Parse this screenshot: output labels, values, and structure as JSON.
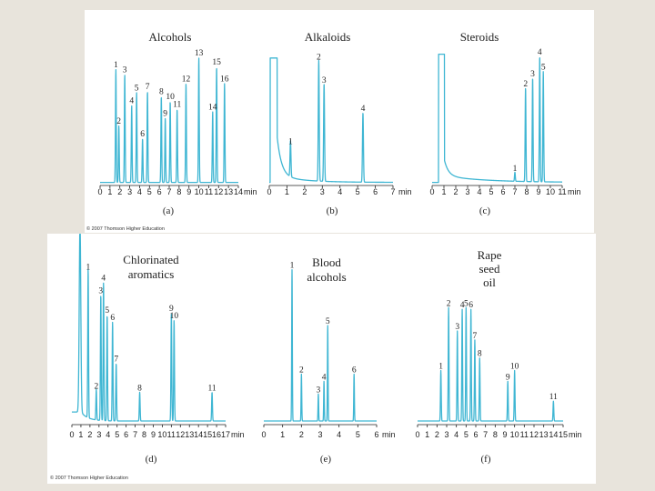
{
  "copyright": "© 2007 Thomson Higher Education",
  "colors": {
    "trace": "#3fb6d3",
    "background": "#e8e4dc",
    "panel": "#ffffff",
    "text": "#222222"
  },
  "chart_data": [
    {
      "id": "a",
      "type": "line",
      "title": "Alcohols",
      "caption": "(a)",
      "xlabel": "min",
      "xlim": [
        0,
        14
      ],
      "xticks": [
        0,
        1,
        2,
        3,
        4,
        5,
        6,
        7,
        8,
        9,
        10,
        11,
        12,
        13,
        14
      ],
      "peaks": [
        {
          "label": "1",
          "t": 1.6,
          "h": 0.88
        },
        {
          "label": "2",
          "t": 1.9,
          "h": 0.44
        },
        {
          "label": "3",
          "t": 2.5,
          "h": 0.84
        },
        {
          "label": "4",
          "t": 3.2,
          "h": 0.6
        },
        {
          "label": "5",
          "t": 3.7,
          "h": 0.7
        },
        {
          "label": "6",
          "t": 4.3,
          "h": 0.34
        },
        {
          "label": "7",
          "t": 4.8,
          "h": 0.71
        },
        {
          "label": "8",
          "t": 6.2,
          "h": 0.67
        },
        {
          "label": "9",
          "t": 6.6,
          "h": 0.5
        },
        {
          "label": "10",
          "t": 7.1,
          "h": 0.63
        },
        {
          "label": "11",
          "t": 7.8,
          "h": 0.57
        },
        {
          "label": "12",
          "t": 8.7,
          "h": 0.77
        },
        {
          "label": "13",
          "t": 10.0,
          "h": 0.97
        },
        {
          "label": "14",
          "t": 11.4,
          "h": 0.55
        },
        {
          "label": "15",
          "t": 11.8,
          "h": 0.9
        },
        {
          "label": "16",
          "t": 12.6,
          "h": 0.77
        }
      ]
    },
    {
      "id": "b",
      "type": "line",
      "title": "Alkaloids",
      "caption": "(b)",
      "xlabel": "min",
      "xlim": [
        0,
        7
      ],
      "xticks": [
        0,
        1,
        2,
        3,
        4,
        5,
        6,
        7
      ],
      "peaks": [
        {
          "label": "1",
          "t": 1.2,
          "h": 0.28
        },
        {
          "label": "2",
          "t": 2.8,
          "h": 0.94
        },
        {
          "label": "3",
          "t": 3.1,
          "h": 0.76
        },
        {
          "label": "4",
          "t": 5.3,
          "h": 0.54
        }
      ]
    },
    {
      "id": "c",
      "type": "line",
      "title": "Steroids",
      "caption": "(c)",
      "xlabel": "min",
      "xlim": [
        0,
        11
      ],
      "xticks": [
        0,
        1,
        2,
        3,
        4,
        5,
        6,
        7,
        8,
        9,
        10,
        11
      ],
      "peaks": [
        {
          "label": "1",
          "t": 7.0,
          "h": 0.07
        },
        {
          "label": "2",
          "t": 7.9,
          "h": 0.73
        },
        {
          "label": "3",
          "t": 8.5,
          "h": 0.81
        },
        {
          "label": "4",
          "t": 9.1,
          "h": 0.98
        },
        {
          "label": "5",
          "t": 9.4,
          "h": 0.86
        }
      ]
    },
    {
      "id": "d",
      "type": "line",
      "title": [
        "Chlorinated",
        "aromatics"
      ],
      "caption": "(d)",
      "xlabel": "min",
      "xlim": [
        0,
        17
      ],
      "xticks": [
        0,
        1,
        2,
        3,
        4,
        5,
        6,
        7,
        8,
        9,
        10,
        11,
        12,
        13,
        14,
        15,
        16,
        17
      ],
      "peaks": [
        {
          "label": "1",
          "t": 1.8,
          "h": 0.83
        },
        {
          "label": "2",
          "t": 2.7,
          "h": 0.17
        },
        {
          "label": "3",
          "t": 3.2,
          "h": 0.7
        },
        {
          "label": "4",
          "t": 3.5,
          "h": 0.77
        },
        {
          "label": "5",
          "t": 3.9,
          "h": 0.59
        },
        {
          "label": "6",
          "t": 4.5,
          "h": 0.55
        },
        {
          "label": "7",
          "t": 4.9,
          "h": 0.32
        },
        {
          "label": "8",
          "t": 7.5,
          "h": 0.16
        },
        {
          "label": "9",
          "t": 11.0,
          "h": 0.6
        },
        {
          "label": "10",
          "t": 11.3,
          "h": 0.56
        },
        {
          "label": "11",
          "t": 15.5,
          "h": 0.16
        }
      ]
    },
    {
      "id": "e",
      "type": "line",
      "title": [
        "Blood",
        "alcohols"
      ],
      "caption": "(e)",
      "xlabel": "min",
      "xlim": [
        0,
        6
      ],
      "xticks": [
        0,
        1,
        2,
        3,
        4,
        5,
        6
      ],
      "peaks": [
        {
          "label": "1",
          "t": 1.5,
          "h": 0.84
        },
        {
          "label": "2",
          "t": 2.0,
          "h": 0.26
        },
        {
          "label": "3",
          "t": 2.9,
          "h": 0.15
        },
        {
          "label": "4",
          "t": 3.2,
          "h": 0.22
        },
        {
          "label": "5",
          "t": 3.4,
          "h": 0.53
        },
        {
          "label": "6",
          "t": 4.8,
          "h": 0.26
        }
      ]
    },
    {
      "id": "f",
      "type": "line",
      "title": [
        "Rape",
        "seed",
        "oil"
      ],
      "caption": "(f)",
      "xlabel": "min",
      "xlim": [
        0,
        15
      ],
      "xticks": [
        0,
        1,
        2,
        3,
        4,
        5,
        6,
        7,
        8,
        9,
        10,
        11,
        12,
        13,
        14,
        15
      ],
      "peaks": [
        {
          "label": "1",
          "t": 2.4,
          "h": 0.28
        },
        {
          "label": "2",
          "t": 3.2,
          "h": 0.63
        },
        {
          "label": "3",
          "t": 4.1,
          "h": 0.5
        },
        {
          "label": "4",
          "t": 4.6,
          "h": 0.62
        },
        {
          "label": "5",
          "t": 5.0,
          "h": 0.63
        },
        {
          "label": "6",
          "t": 5.5,
          "h": 0.62
        },
        {
          "label": "7",
          "t": 5.9,
          "h": 0.45
        },
        {
          "label": "8",
          "t": 6.4,
          "h": 0.35
        },
        {
          "label": "9",
          "t": 9.3,
          "h": 0.22
        },
        {
          "label": "10",
          "t": 10.0,
          "h": 0.28
        },
        {
          "label": "11",
          "t": 14.0,
          "h": 0.11
        }
      ]
    }
  ]
}
